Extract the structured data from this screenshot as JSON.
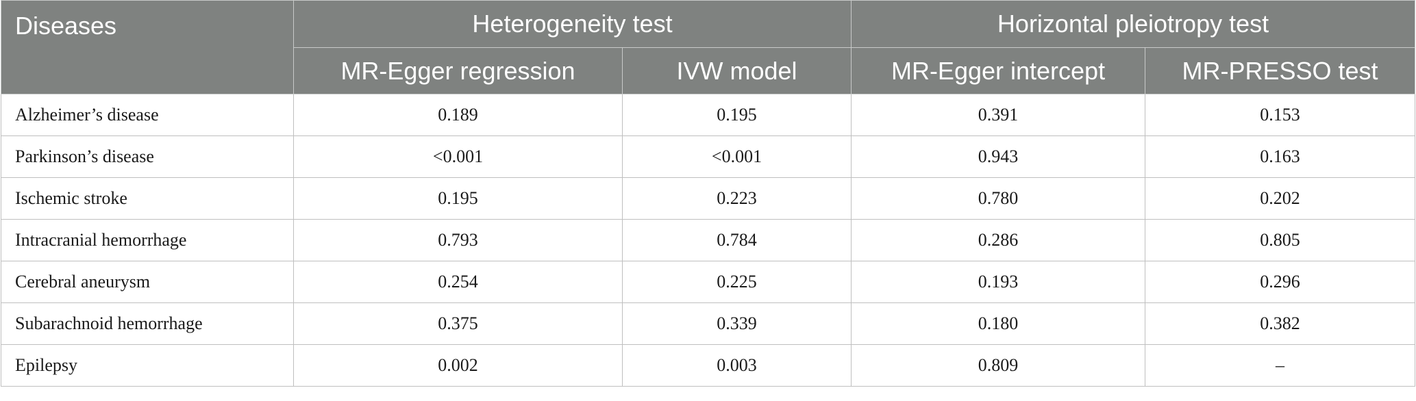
{
  "table": {
    "header": {
      "diseases": "Diseases",
      "heterogeneity": "Heterogeneity test",
      "pleiotropy": "Horizontal pleiotropy test",
      "sub": [
        "MR-Egger regression",
        "IVW model",
        "MR-Egger intercept",
        "MR-PRESSO test"
      ]
    },
    "rows": [
      {
        "disease": "Alzheimer’s disease",
        "v": [
          "0.189",
          "0.195",
          "0.391",
          "0.153"
        ]
      },
      {
        "disease": "Parkinson’s disease",
        "v": [
          "<0.001",
          "<0.001",
          "0.943",
          "0.163"
        ]
      },
      {
        "disease": "Ischemic stroke",
        "v": [
          "0.195",
          "0.223",
          "0.780",
          "0.202"
        ]
      },
      {
        "disease": "Intracranial hemorrhage",
        "v": [
          "0.793",
          "0.784",
          "0.286",
          "0.805"
        ]
      },
      {
        "disease": "Cerebral aneurysm",
        "v": [
          "0.254",
          "0.225",
          "0.193",
          "0.296"
        ]
      },
      {
        "disease": "Subarachnoid hemorrhage",
        "v": [
          "0.375",
          "0.339",
          "0.180",
          "0.382"
        ]
      },
      {
        "disease": "Epilepsy",
        "v": [
          "0.002",
          "0.003",
          "0.809",
          "–"
        ]
      }
    ]
  }
}
